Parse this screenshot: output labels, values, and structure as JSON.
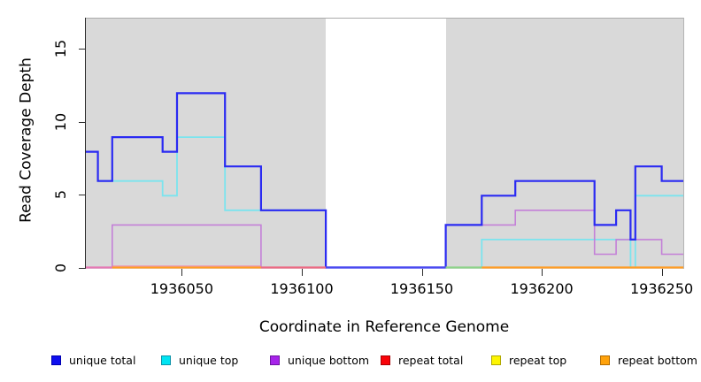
{
  "chart_data": {
    "type": "line",
    "subtype": "step-coverage",
    "title": "",
    "xlabel": "Coordinate in Reference Genome",
    "ylabel": "Read Coverage Depth",
    "xlim": [
      1936010,
      1936259
    ],
    "ylim": [
      0,
      17.1
    ],
    "xticks": [
      "1936050",
      "1936100",
      "1936150",
      "1936200",
      "1936250"
    ],
    "xtick_values": [
      1936050,
      1936100,
      1936150,
      1936200,
      1936250
    ],
    "yticks": [
      "0",
      "5",
      "10",
      "15"
    ],
    "ytick_values": [
      0,
      5,
      10,
      15
    ],
    "grid": "off",
    "plot_background": "#d9d9d9",
    "masked_region": {
      "start": 1936110,
      "end": 1936160,
      "color": "#ffffff"
    },
    "step_format": "[coordinate_start, depth] ; depth holds until next entry, last entry holds to xlim end",
    "series": [
      {
        "name": "repeat total",
        "color": "#f0485c",
        "line_width": 1.6,
        "steps": [
          [
            1936010,
            0
          ]
        ]
      },
      {
        "name": "repeat top",
        "color": "#f5ef50",
        "line_width": 1.6,
        "steps": [
          [
            1936010,
            0
          ]
        ]
      },
      {
        "name": "repeat bottom",
        "color": "#ff9d26",
        "line_width": 2,
        "steps": [
          [
            1936010,
            0
          ]
        ]
      },
      {
        "name": "unique top",
        "color": "#7be4ee",
        "line_width": 1.8,
        "steps": [
          [
            1936010,
            8
          ],
          [
            1936015,
            6
          ],
          [
            1936042,
            5
          ],
          [
            1936048,
            9
          ],
          [
            1936068,
            4
          ],
          [
            1936110,
            0
          ],
          [
            1936175,
            2
          ],
          [
            1936237,
            0
          ],
          [
            1936239,
            5
          ]
        ]
      },
      {
        "name": "unique bottom",
        "color": "#c480d8",
        "line_width": 1.6,
        "steps": [
          [
            1936010,
            0
          ],
          [
            1936021,
            3
          ],
          [
            1936083,
            0
          ],
          [
            1936160,
            3
          ],
          [
            1936189,
            4
          ],
          [
            1936222,
            1
          ],
          [
            1936231,
            2
          ],
          [
            1936250,
            1
          ]
        ]
      },
      {
        "name": "unique total",
        "color": "#2a2af2",
        "line_width": 2.2,
        "steps": [
          [
            1936010,
            8
          ],
          [
            1936015,
            6
          ],
          [
            1936021,
            9
          ],
          [
            1936042,
            8
          ],
          [
            1936048,
            12
          ],
          [
            1936068,
            7
          ],
          [
            1936083,
            4
          ],
          [
            1936110,
            0
          ],
          [
            1936160,
            3
          ],
          [
            1936175,
            5
          ],
          [
            1936189,
            6
          ],
          [
            1936222,
            3
          ],
          [
            1936231,
            4
          ],
          [
            1936237,
            2
          ],
          [
            1936239,
            7
          ],
          [
            1936250,
            6
          ]
        ]
      }
    ],
    "baseline_segments": [
      {
        "from": 1936010,
        "to": 1936021,
        "color": "#e579b4"
      },
      {
        "from": 1936021,
        "to": 1936083,
        "color": "#ff9d26",
        "top_color": "#ef86a8"
      },
      {
        "from": 1936083,
        "to": 1936110,
        "color": "#ec6a84"
      },
      {
        "from": 1936110,
        "to": 1936160,
        "color": "#4a4af0"
      },
      {
        "from": 1936160,
        "to": 1936175,
        "color": "#8ed38a"
      },
      {
        "from": 1936175,
        "to": 1936259,
        "color": "#ff9d26"
      }
    ],
    "legend": [
      {
        "label": "unique total",
        "fill": "#0f0fef",
        "border": "#0000b0"
      },
      {
        "label": "unique top",
        "fill": "#00e4f2",
        "border": "#0b93a8"
      },
      {
        "label": "unique bottom",
        "fill": "#a723ea",
        "border": "#6f14a0"
      },
      {
        "label": "repeat total",
        "fill": "#f90309",
        "border": "#a80004"
      },
      {
        "label": "repeat top",
        "fill": "#fdf502",
        "border": "#b0a800"
      },
      {
        "label": "repeat bottom",
        "fill": "#ffa20b",
        "border": "#b26b00"
      }
    ],
    "legend_position": "bottom"
  }
}
